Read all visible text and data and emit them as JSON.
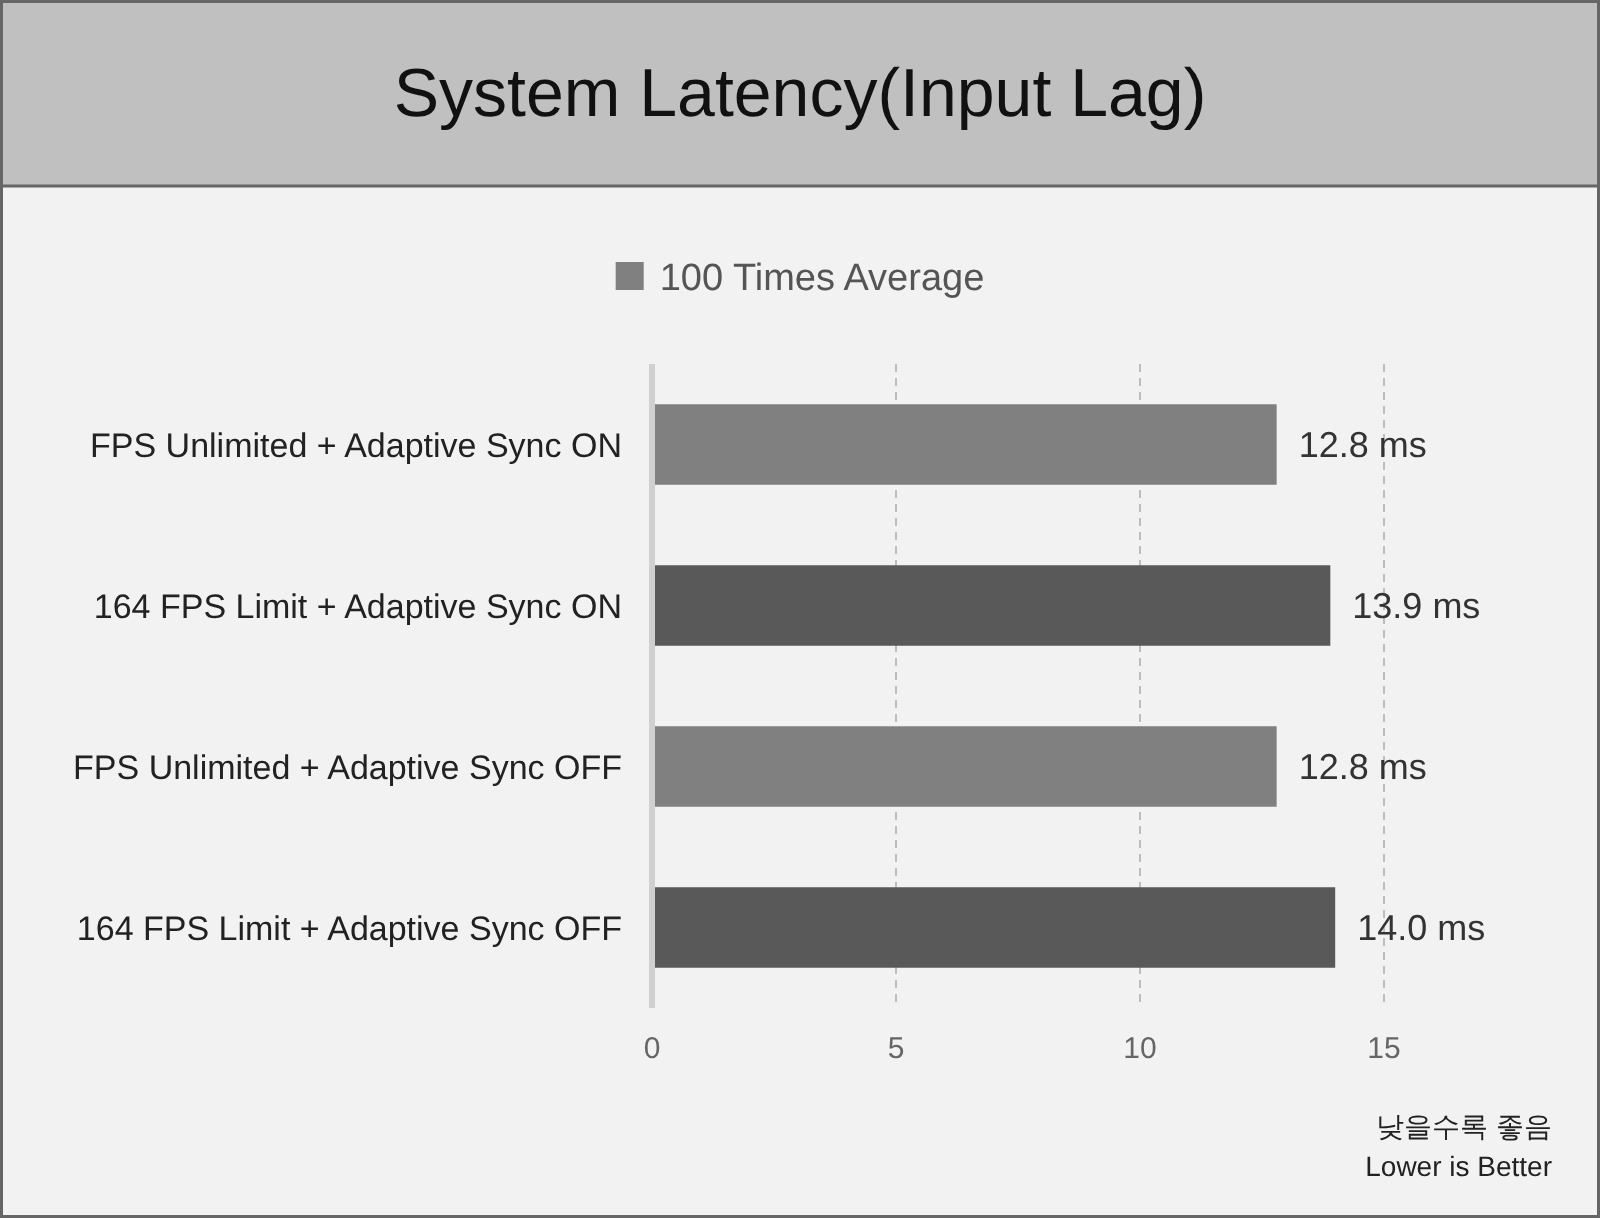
{
  "chart_data": {
    "type": "bar",
    "orientation": "horizontal",
    "title": "System Latency(Input Lag)",
    "categories": [
      "FPS Unlimited + Adaptive Sync ON",
      "164 FPS Limit + Adaptive Sync ON",
      "FPS Unlimited + Adaptive Sync OFF",
      "164 FPS Limit + Adaptive Sync OFF"
    ],
    "series": [
      {
        "name": "100 Times Average",
        "color": "#808080",
        "colors": [
          "#808080",
          "#595959",
          "#808080",
          "#595959"
        ],
        "values": [
          12.8,
          13.9,
          12.8,
          14.0
        ],
        "value_labels": [
          "12.8 ms",
          "13.9 ms",
          "12.8 ms",
          "14.0 ms"
        ]
      }
    ],
    "xlim": [
      0,
      15
    ],
    "xticks": [
      0,
      5,
      10,
      15
    ],
    "grid": "x",
    "legend": "top",
    "annotations": [
      "낮을수록 좋음",
      "Lower is Better"
    ]
  }
}
